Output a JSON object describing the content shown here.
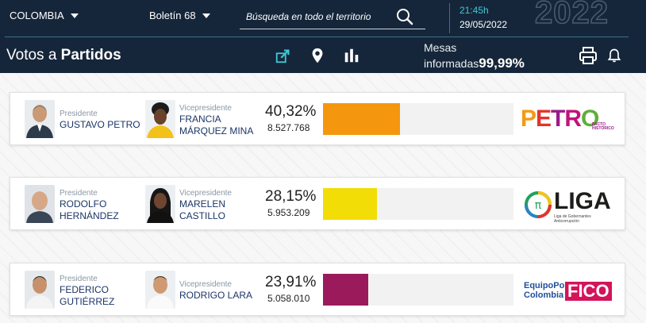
{
  "header": {
    "department": "COLOMBIA",
    "boletin": "Boletín 68",
    "search_placeholder": "Búsqueda en todo el territorio",
    "time": "21:45h",
    "date": "29/05/2022",
    "year": "2022",
    "section_title_light": "Votos a ",
    "section_title_bold": "Partidos",
    "mesas_line1": "Mesas",
    "mesas_line2": "informadas",
    "mesas_pct": "99,99%"
  },
  "candidates": [
    {
      "president_role": "Presidente",
      "president_name": "GUSTAVO PETRO",
      "vp_role": "Vicepresidente",
      "vp_name_1": "FRANCIA",
      "vp_name_2": "MÁRQUEZ MINA",
      "percent": "40,32%",
      "votes": "8.527.768",
      "bar_value": 40.32,
      "bar_color": "#f5960f",
      "logo": "PETRO",
      "logo_sub": "PACTO HISTÓRICO"
    },
    {
      "president_role": "Presidente",
      "president_name_1": "RODOLFO",
      "president_name_2": "HERNÁNDEZ",
      "vp_role": "Vicepresidente",
      "vp_name_1": "MARELEN",
      "vp_name_2": "CASTILLO",
      "percent": "28,15%",
      "votes": "5.953.209",
      "bar_value": 28.15,
      "bar_color": "#f2dd07",
      "logo": "LIGA",
      "logo_sub": "Liga de Gobernantes Anticorrupción"
    },
    {
      "president_role": "Presidente",
      "president_name_1": "FEDERICO",
      "president_name_2": "GUTIÉRREZ",
      "vp_role": "Vicepresidente",
      "vp_name": "RODRIGO LARA",
      "percent": "23,91%",
      "votes": "5.058.010",
      "bar_value": 23.91,
      "bar_color": "#9b1a5c",
      "logo_line1": "EquipoPor",
      "logo_line2": "Colombia",
      "logo_brand": "FICO"
    }
  ],
  "colors": {
    "header_bg": "#16263a",
    "accent_cyan": "#41c6d6",
    "name_blue": "#1a3566"
  }
}
